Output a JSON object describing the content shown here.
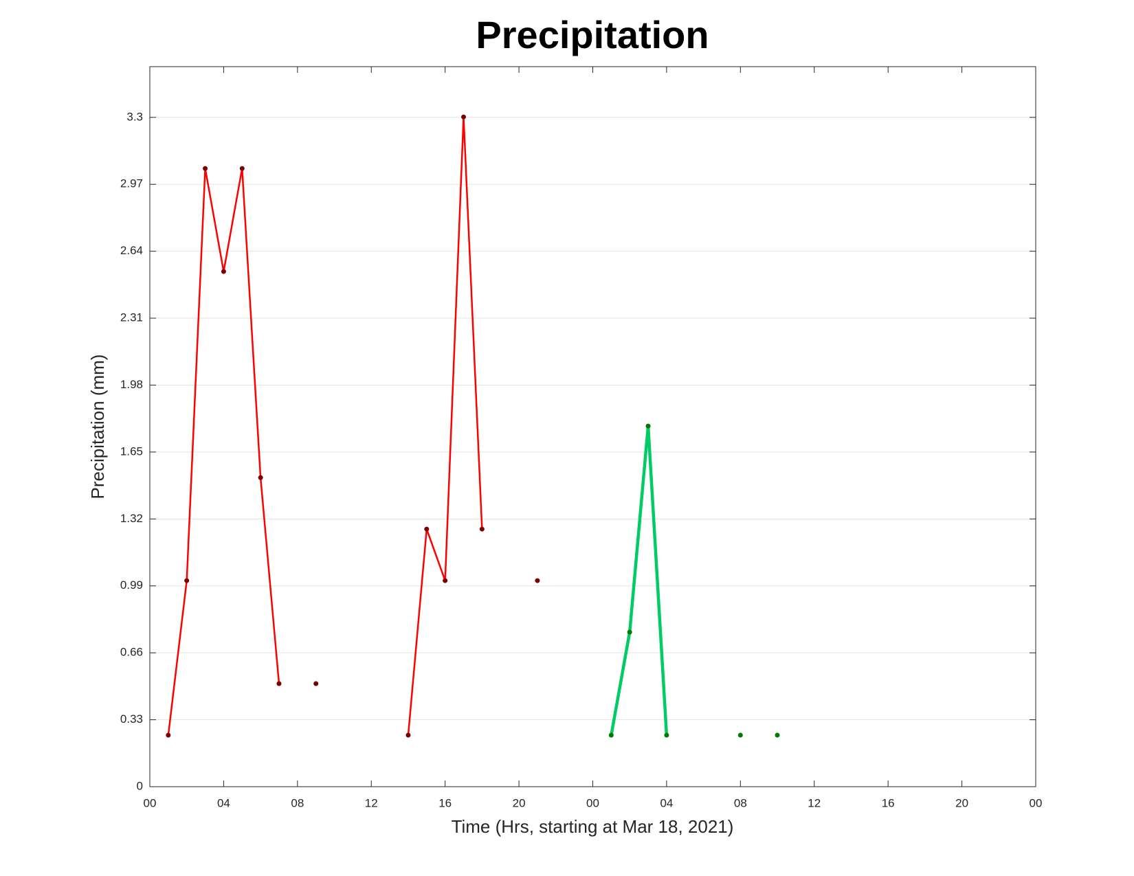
{
  "chart_data": {
    "type": "line",
    "title": "Precipitation",
    "x_label": "Time (Hrs, starting at Mar 18, 2021)",
    "y_label": "Precipitation (mm)",
    "xlim": [
      0,
      48
    ],
    "xticks": [
      {
        "value": 0,
        "label": "00"
      },
      {
        "value": 4,
        "label": "04"
      },
      {
        "value": 8,
        "label": "08"
      },
      {
        "value": 12,
        "label": "12"
      },
      {
        "value": 16,
        "label": "16"
      },
      {
        "value": 20,
        "label": "20"
      },
      {
        "value": 24,
        "label": "00"
      },
      {
        "value": 28,
        "label": "04"
      },
      {
        "value": 32,
        "label": "08"
      },
      {
        "value": 36,
        "label": "12"
      },
      {
        "value": 40,
        "label": "16"
      },
      {
        "value": 44,
        "label": "20"
      },
      {
        "value": 48,
        "label": "00"
      }
    ],
    "ylim": [
      0,
      3.55
    ],
    "yticks": [
      0,
      0.33,
      0.66,
      0.99,
      1.32,
      1.65,
      1.98,
      2.31,
      2.64,
      2.97,
      3.3
    ],
    "grid": true,
    "series": [
      {
        "color": "#ff0000",
        "marker_color": "#7a0000",
        "line_width": 2.5,
        "x": [
          1,
          2,
          3,
          4,
          5,
          6,
          7,
          8,
          9,
          10,
          14,
          15,
          16,
          17,
          18,
          19,
          21
        ],
        "values": [
          0.254,
          1.016,
          3.048,
          2.54,
          3.048,
          1.524,
          0.508,
          null,
          0.508,
          null,
          0.254,
          1.27,
          1.016,
          3.302,
          1.27,
          null,
          1.016
        ]
      },
      {
        "color": "#00cc66",
        "marker_color": "#007a00",
        "line_width": 4.5,
        "x": [
          25,
          26,
          27,
          28,
          29,
          32,
          33,
          34
        ],
        "values": [
          0.254,
          0.762,
          1.778,
          0.254,
          null,
          0.254,
          null,
          0.254
        ]
      }
    ]
  }
}
